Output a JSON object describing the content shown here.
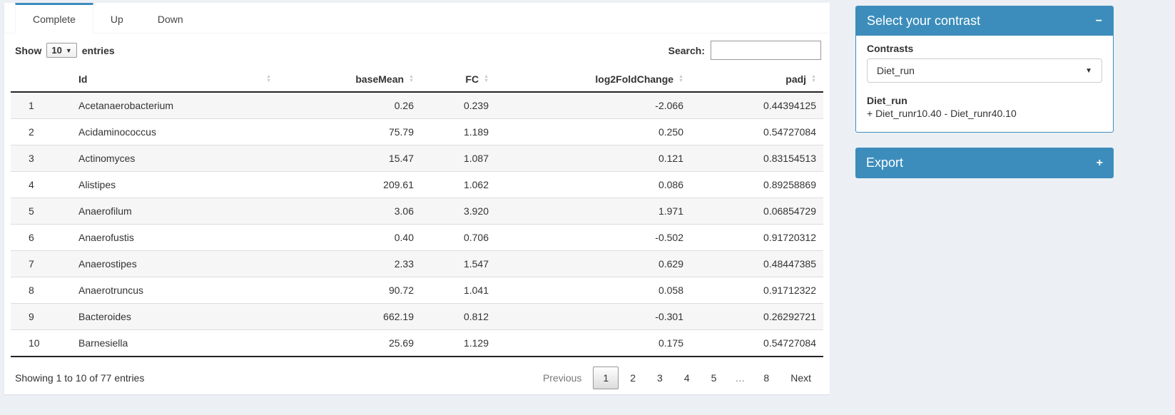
{
  "colors": {
    "accent": "#3c8dbc",
    "page_bg": "#ecf0f5",
    "header_border": "#232323",
    "stripe": "#f6f6f6"
  },
  "tabs": [
    {
      "label": "Complete",
      "active": true
    },
    {
      "label": "Up",
      "active": false
    },
    {
      "label": "Down",
      "active": false
    }
  ],
  "length_control": {
    "prefix": "Show",
    "selected": "10",
    "suffix": "entries"
  },
  "search": {
    "label": "Search:",
    "value": ""
  },
  "table": {
    "columns": [
      {
        "label": "",
        "align": "left",
        "sortable": false
      },
      {
        "label": "Id",
        "align": "spread",
        "sortable": true
      },
      {
        "label": "baseMean",
        "align": "right",
        "sortable": true
      },
      {
        "label": "FC",
        "align": "right",
        "sortable": true
      },
      {
        "label": "log2FoldChange",
        "align": "right",
        "sortable": true
      },
      {
        "label": "padj",
        "align": "right",
        "sortable": true
      }
    ],
    "rows": [
      {
        "n": "1",
        "id": "Acetanaerobacterium",
        "baseMean": "0.26",
        "fc": "0.239",
        "log2fc": "-2.066",
        "padj": "0.44394125"
      },
      {
        "n": "2",
        "id": "Acidaminococcus",
        "baseMean": "75.79",
        "fc": "1.189",
        "log2fc": "0.250",
        "padj": "0.54727084"
      },
      {
        "n": "3",
        "id": "Actinomyces",
        "baseMean": "15.47",
        "fc": "1.087",
        "log2fc": "0.121",
        "padj": "0.83154513"
      },
      {
        "n": "4",
        "id": "Alistipes",
        "baseMean": "209.61",
        "fc": "1.062",
        "log2fc": "0.086",
        "padj": "0.89258869"
      },
      {
        "n": "5",
        "id": "Anaerofilum",
        "baseMean": "3.06",
        "fc": "3.920",
        "log2fc": "1.971",
        "padj": "0.06854729"
      },
      {
        "n": "6",
        "id": "Anaerofustis",
        "baseMean": "0.40",
        "fc": "0.706",
        "log2fc": "-0.502",
        "padj": "0.91720312"
      },
      {
        "n": "7",
        "id": "Anaerostipes",
        "baseMean": "2.33",
        "fc": "1.547",
        "log2fc": "0.629",
        "padj": "0.48447385"
      },
      {
        "n": "8",
        "id": "Anaerotruncus",
        "baseMean": "90.72",
        "fc": "1.041",
        "log2fc": "0.058",
        "padj": "0.91712322"
      },
      {
        "n": "9",
        "id": "Bacteroides",
        "baseMean": "662.19",
        "fc": "0.812",
        "log2fc": "-0.301",
        "padj": "0.26292721"
      },
      {
        "n": "10",
        "id": "Barnesiella",
        "baseMean": "25.69",
        "fc": "1.129",
        "log2fc": "0.175",
        "padj": "0.54727084"
      }
    ]
  },
  "footer": {
    "info": "Showing 1 to 10 of 77 entries",
    "pagination": [
      {
        "label": "Previous",
        "state": "disabled"
      },
      {
        "label": "1",
        "state": "current"
      },
      {
        "label": "2",
        "state": "normal"
      },
      {
        "label": "3",
        "state": "normal"
      },
      {
        "label": "4",
        "state": "normal"
      },
      {
        "label": "5",
        "state": "normal"
      },
      {
        "label": "…",
        "state": "ellipsis"
      },
      {
        "label": "8",
        "state": "normal"
      },
      {
        "label": "Next",
        "state": "normal"
      }
    ]
  },
  "contrast_box": {
    "title": "Select your contrast",
    "collapse_icon": "−",
    "field_label": "Contrasts",
    "selected_contrast": "Diet_run",
    "contrast_name": "Diet_run",
    "contrast_formula": "+ Diet_runr10.40 - Diet_runr40.10"
  },
  "export_box": {
    "title": "Export",
    "expand_icon": "+"
  }
}
